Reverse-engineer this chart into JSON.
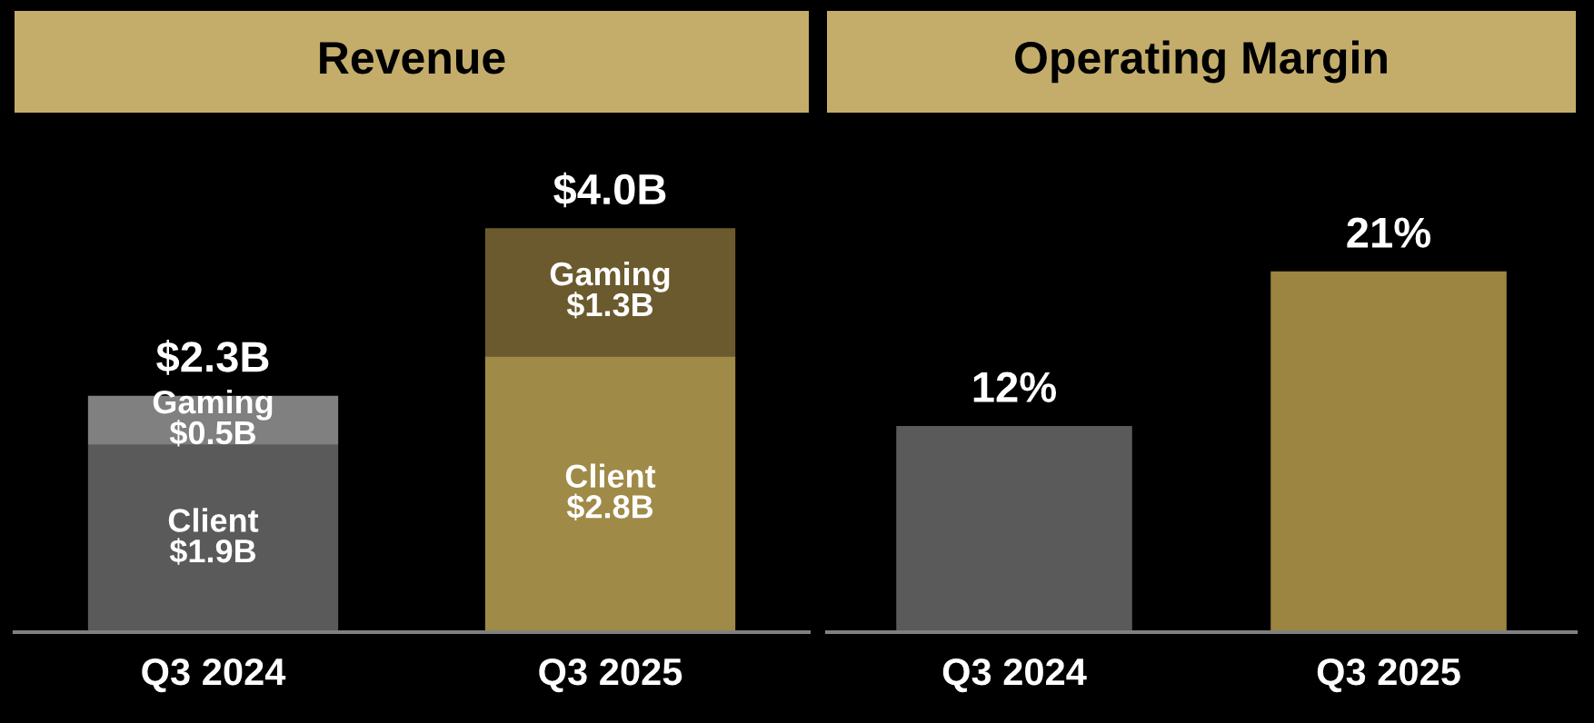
{
  "chart_data": [
    {
      "type": "bar",
      "title": "Revenue",
      "categories": [
        "Q3 2024",
        "Q3 2025"
      ],
      "stacked": true,
      "tick_labels": "x",
      "totals": [
        "$2.3B",
        "$4.0B"
      ],
      "series": [
        {
          "name": "Client",
          "colors": [
            "#5a5a5a",
            "#a08a48"
          ],
          "values": [
            1.9,
            2.8
          ],
          "value_labels": [
            "$1.9B",
            "$2.8B"
          ]
        },
        {
          "name": "Gaming",
          "colors": [
            "#808080",
            "#6b5a2e"
          ],
          "values": [
            0.5,
            1.3
          ],
          "value_labels": [
            "$0.5B",
            "$1.3B"
          ]
        }
      ]
    },
    {
      "type": "bar",
      "title": "Operating Margin",
      "categories": [
        "Q3 2024",
        "Q3 2025"
      ],
      "tick_labels": "x",
      "values": [
        12,
        21
      ],
      "colors": [
        "#5a5a5a",
        "#9c8540"
      ],
      "value_labels": [
        "12%",
        "21%"
      ]
    }
  ]
}
